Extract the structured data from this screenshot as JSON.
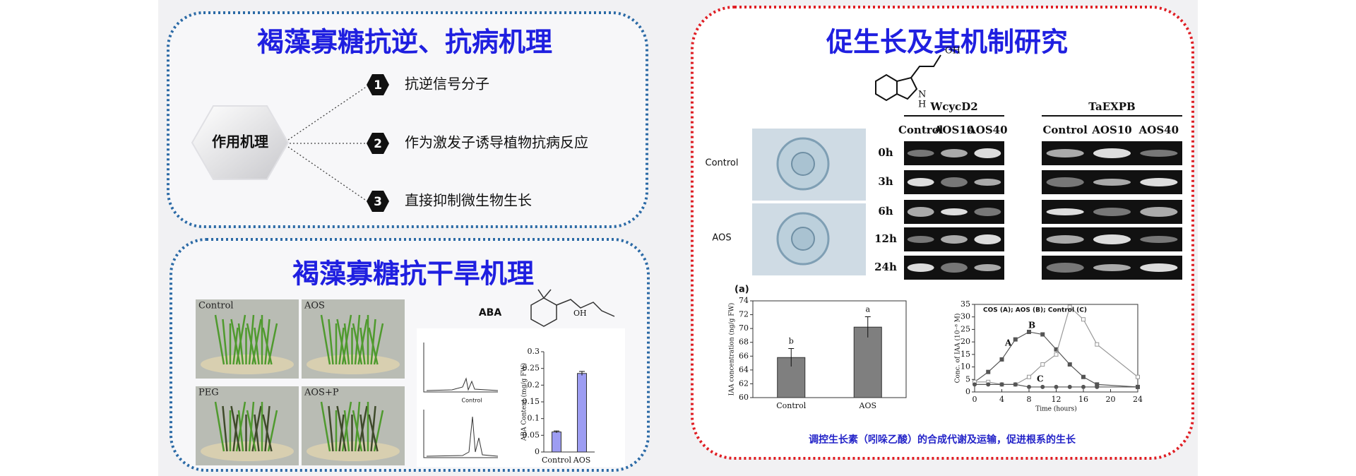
{
  "slide": {
    "stress_panel": {
      "title": "褐藻寡糖抗逆、抗病机理",
      "hub": "作用机理",
      "items": [
        {
          "number": 1,
          "text": "抗逆信号分子"
        },
        {
          "number": 2,
          "text": "作为激发子诱导植物抗病反应"
        },
        {
          "number": 3,
          "text": "直接抑制微生物生长"
        }
      ]
    },
    "drought_panel": {
      "title": "褐藻寡糖抗干旱机理",
      "photo_labels": [
        "Control",
        "AOS",
        "PEG",
        "AOS+P"
      ],
      "chromatogram_label": "Control",
      "aba_structure_label": "OH"
    },
    "growth_panel": {
      "title": "促生长及其机制研究",
      "iaa_structure_labels": [
        "N",
        "H",
        "OH"
      ],
      "micrograph_labels": [
        "Control",
        "AOS"
      ],
      "gels": [
        {
          "gene": "WcycD2",
          "columns": [
            "Control",
            "AOS10",
            "AOS40"
          ]
        },
        {
          "gene": "TaEXPB",
          "columns": [
            "Control",
            "AOS10",
            "AOS40"
          ]
        }
      ],
      "time_points": [
        "0h",
        "3h",
        "6h",
        "12h",
        "24h"
      ],
      "caption": "调控生长素（吲哚乙酸）的合成代谢及运输，促进根系的生长"
    }
  },
  "chart_data": [
    {
      "type": "bar",
      "panel_label": "(a)",
      "y_label": "IAA concentration (ng/g FW)",
      "categories": [
        "Control",
        "AOS"
      ],
      "values": [
        65.8,
        70.2
      ],
      "errors": [
        1.3,
        1.5
      ],
      "annotations": [
        "b",
        "a"
      ],
      "color": "#7f7f7f",
      "ylim": [
        60,
        74
      ],
      "yticks": [
        60,
        62,
        64,
        66,
        68,
        70,
        72,
        74
      ]
    },
    {
      "type": "bar",
      "title": "ABA",
      "y_label": "ABA Content (mg/g FW)",
      "categories": [
        "Control",
        "AOS"
      ],
      "values": [
        0.06,
        0.235
      ],
      "errors": [
        0.003,
        0.006
      ],
      "color": "#9d9df2",
      "ylim": [
        0,
        0.3
      ],
      "yticks": [
        0,
        0.05,
        0.1,
        0.15,
        0.2,
        0.25,
        0.3
      ]
    },
    {
      "type": "line",
      "title": "COS (A); AOS (B); Control (C)",
      "x_label": "Time (hours)",
      "y_label": "Conc. of IAA (10⁻⁸ M)",
      "x": [
        0,
        2,
        4,
        6,
        8,
        10,
        12,
        14,
        16,
        18,
        24
      ],
      "series": [
        {
          "name": "A",
          "color": "#555555",
          "marker": "square",
          "values": [
            4,
            8,
            13,
            21,
            24,
            23,
            17,
            11,
            6,
            3,
            2
          ]
        },
        {
          "name": "B",
          "color": "#999999",
          "marker": "open-square",
          "values": [
            4,
            4,
            3,
            3,
            6,
            11,
            15,
            34,
            29,
            19,
            6
          ]
        },
        {
          "name": "C",
          "color": "#555555",
          "marker": "circle",
          "values": [
            3,
            3,
            3,
            3,
            2,
            2,
            2,
            2,
            2,
            2,
            2
          ]
        }
      ],
      "xlim": [
        0,
        24
      ],
      "xticks": [
        0,
        4,
        8,
        12,
        16,
        20,
        24
      ],
      "ylim": [
        0,
        35
      ],
      "yticks": [
        0,
        5,
        10,
        15,
        20,
        25,
        30,
        35
      ]
    }
  ]
}
